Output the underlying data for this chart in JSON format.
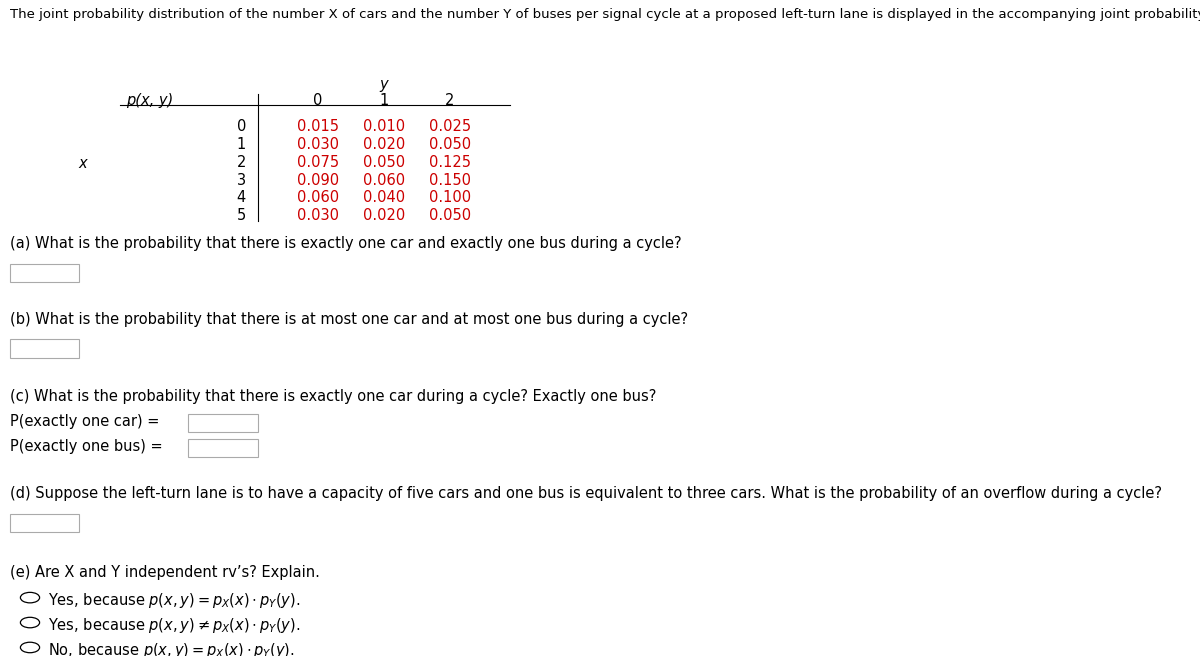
{
  "title": "The joint probability distribution of the number X of cars and the number Y of buses per signal cycle at a proposed left-turn lane is displayed in the accompanying joint probability table.",
  "table": {
    "y_values": [
      0,
      1,
      2
    ],
    "x_values": [
      0,
      1,
      2,
      3,
      4,
      5
    ],
    "data": [
      [
        0.015,
        0.01,
        0.025
      ],
      [
        0.03,
        0.02,
        0.05
      ],
      [
        0.075,
        0.05,
        0.125
      ],
      [
        0.09,
        0.06,
        0.15
      ],
      [
        0.06,
        0.04,
        0.1
      ],
      [
        0.03,
        0.02,
        0.05
      ]
    ]
  },
  "questions": {
    "a": "(a) What is the probability that there is exactly one car and exactly one bus during a cycle?",
    "b": "(b) What is the probability that there is at most one car and at most one bus during a cycle?",
    "c": "(c) What is the probability that there is exactly one car during a cycle? Exactly one bus?",
    "c_line1": "P(exactly one car) =",
    "c_line2": "P(exactly one bus) =",
    "d": "(d) Suppose the left-turn lane is to have a capacity of five cars and one bus is equivalent to three cars. What is the probability of an overflow during a cycle?",
    "e_header": "(e) Are X and Y independent rv’s? Explain."
  },
  "colors": {
    "table_data": "#cc0000",
    "table_header": "#000000",
    "text": "#000000",
    "background": "#ffffff",
    "box_border": "#aaaaaa"
  },
  "font_sizes": {
    "title": 9.5,
    "table": 10.5,
    "question": 10.5,
    "option": 10.5
  }
}
